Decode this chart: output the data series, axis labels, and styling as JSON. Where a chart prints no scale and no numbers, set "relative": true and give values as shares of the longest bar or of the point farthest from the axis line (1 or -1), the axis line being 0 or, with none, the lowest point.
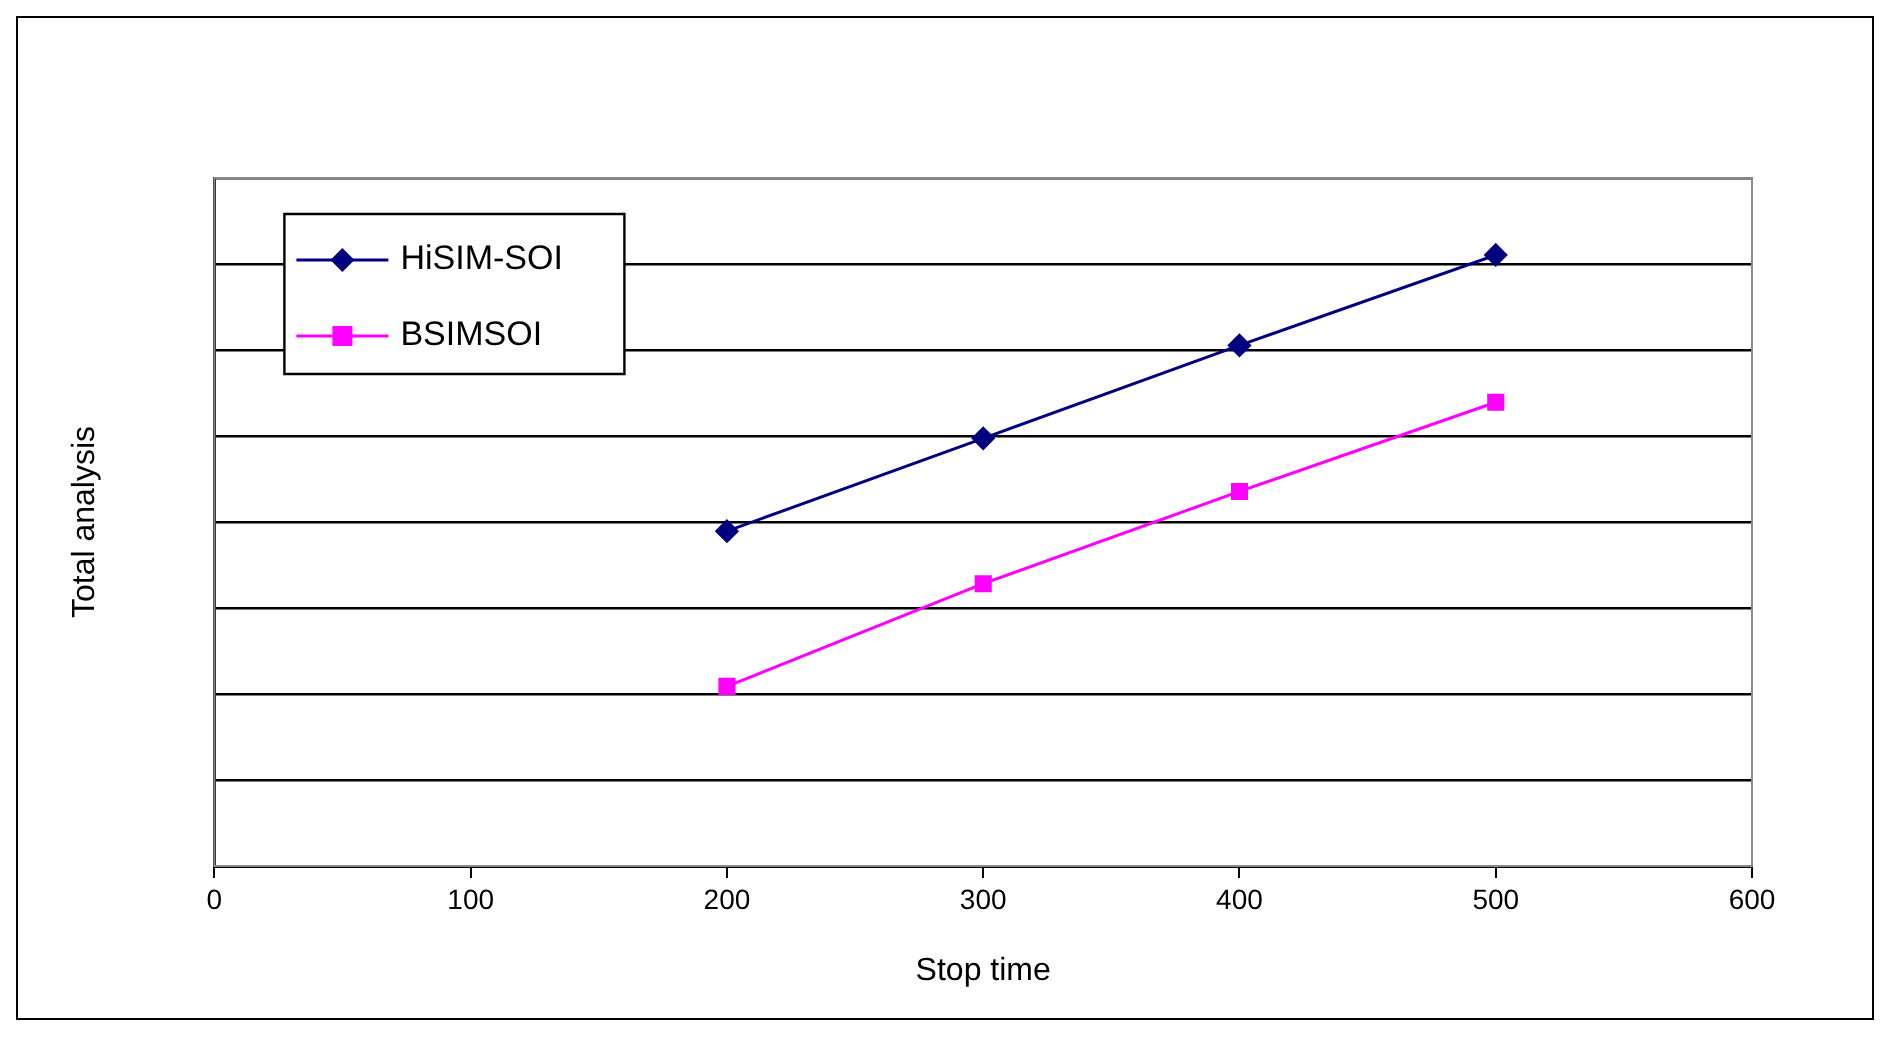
{
  "chart_data": {
    "type": "line",
    "relative": true,
    "xlabel": "Stop time",
    "ylabel": "Total analysis",
    "xlim": [
      0,
      600
    ],
    "xticks": [
      0,
      100,
      200,
      300,
      400,
      500,
      600
    ],
    "grid": "y",
    "legend": "top left",
    "line_style": "solid",
    "series": [
      {
        "name": "HiSIM-SOI",
        "color": "#000080",
        "marker": "diamond",
        "x": [
          200,
          300,
          400,
          500
        ],
        "values": [
          0.548,
          0.7,
          0.852,
          1
        ]
      },
      {
        "name": "BSIMSOI",
        "color": "#ff00ff",
        "marker": "square",
        "x": [
          200,
          300,
          400,
          500
        ],
        "values": [
          0.294,
          0.462,
          0.613,
          0.759
        ]
      }
    ]
  }
}
